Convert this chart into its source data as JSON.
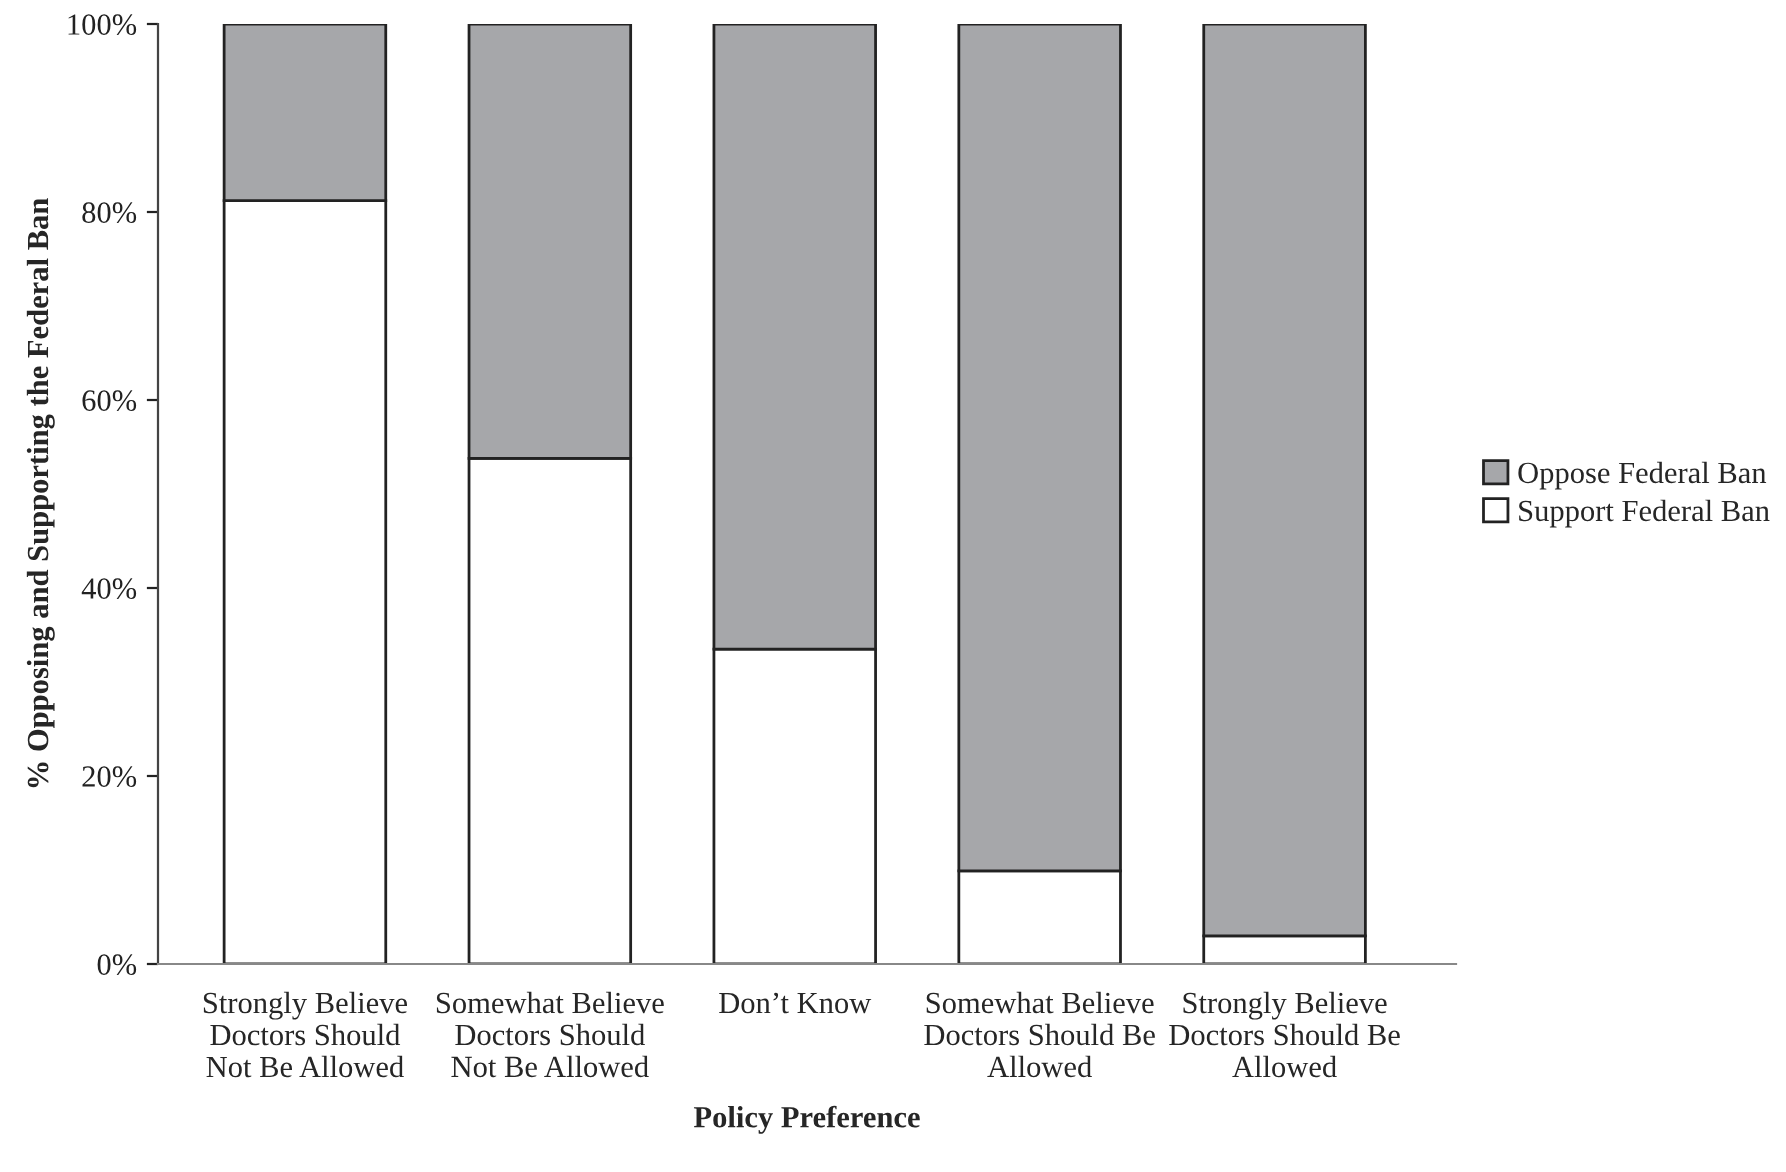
{
  "chart_data": {
    "type": "bar",
    "stacked": true,
    "xlabel": "Policy Preference",
    "ylabel": "% Opposing and Supporting the Federal Ban",
    "categories": [
      "Strongly Believe\nDoctors Should\nNot Be Allowed",
      "Somewhat Believe\nDoctors Should\nNot Be Allowed",
      "Don’t Know",
      "Somewhat Believe\nDoctors Should Be\nAllowed",
      "Strongly Believe\nDoctors Should Be\nAllowed"
    ],
    "series": [
      {
        "name": "Support Federal Ban",
        "color": "#ffffff",
        "values": [
          81.2,
          53.8,
          33.5,
          9.9,
          3.0
        ]
      },
      {
        "name": "Oppose Federal Ban",
        "color": "#a6a7aa",
        "values": [
          18.8,
          46.2,
          66.5,
          90.1,
          97.0
        ]
      }
    ],
    "ylim": [
      0,
      100
    ],
    "yticks": [
      {
        "value": 0,
        "label": "0%"
      },
      {
        "value": 20,
        "label": "20%"
      },
      {
        "value": 40,
        "label": "40%"
      },
      {
        "value": 60,
        "label": "60%"
      },
      {
        "value": 80,
        "label": "80%"
      },
      {
        "value": 100,
        "label": "100%"
      }
    ],
    "legend": "right",
    "grid": false
  }
}
